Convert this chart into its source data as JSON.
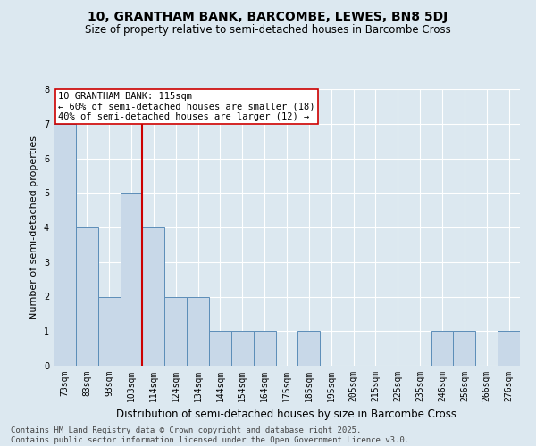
{
  "title": "10, GRANTHAM BANK, BARCOMBE, LEWES, BN8 5DJ",
  "subtitle": "Size of property relative to semi-detached houses in Barcombe Cross",
  "xlabel": "Distribution of semi-detached houses by size in Barcombe Cross",
  "ylabel": "Number of semi-detached properties",
  "categories": [
    "73sqm",
    "83sqm",
    "93sqm",
    "103sqm",
    "114sqm",
    "124sqm",
    "134sqm",
    "144sqm",
    "154sqm",
    "164sqm",
    "175sqm",
    "185sqm",
    "195sqm",
    "205sqm",
    "215sqm",
    "225sqm",
    "235sqm",
    "246sqm",
    "256sqm",
    "266sqm",
    "276sqm"
  ],
  "values": [
    7,
    4,
    2,
    5,
    4,
    2,
    2,
    1,
    1,
    1,
    0,
    1,
    0,
    0,
    0,
    0,
    0,
    1,
    1,
    0,
    1
  ],
  "bar_color": "#c8d8e8",
  "bar_edge_color": "#5b8db8",
  "subject_line_index": 4,
  "subject_line_color": "#cc0000",
  "annotation_line1": "10 GRANTHAM BANK: 115sqm",
  "annotation_line2": "← 60% of semi-detached houses are smaller (18)",
  "annotation_line3": "40% of semi-detached houses are larger (12) →",
  "annotation_box_color": "#cc0000",
  "ylim": [
    0,
    8
  ],
  "yticks": [
    0,
    1,
    2,
    3,
    4,
    5,
    6,
    7,
    8
  ],
  "background_color": "#dce8f0",
  "grid_color": "#ffffff",
  "footnote1": "Contains HM Land Registry data © Crown copyright and database right 2025.",
  "footnote2": "Contains public sector information licensed under the Open Government Licence v3.0.",
  "title_fontsize": 10,
  "subtitle_fontsize": 8.5,
  "xlabel_fontsize": 8.5,
  "ylabel_fontsize": 8,
  "tick_fontsize": 7,
  "footnote_fontsize": 6.5,
  "annotation_fontsize": 7.5
}
